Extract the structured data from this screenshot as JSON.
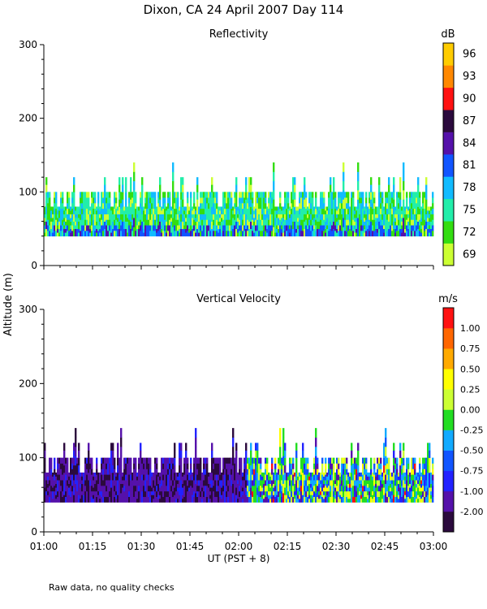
{
  "figure": {
    "title": "Dixon, CA 24 April 2007  Day 114",
    "shared_ylabel": "Altitude (m)",
    "xlabel": "UT  (PST + 8)",
    "footnote": "Raw data, no quality checks"
  },
  "chart_data": [
    {
      "type": "heatmap",
      "title": "Reflectivity",
      "xlim": [
        "01:00",
        "03:00"
      ],
      "ylim": [
        0,
        300
      ],
      "x_ticks": [
        "01:00",
        "01:15",
        "01:30",
        "01:45",
        "02:00",
        "02:15",
        "02:30",
        "02:45",
        "03:00"
      ],
      "y_ticks": [
        0,
        100,
        200,
        300
      ],
      "echo_base_m": 40,
      "echo_top_typical_m": 100,
      "echo_top_max_m": 140,
      "colorbar": {
        "unit": "dB",
        "tick_labels": [
          "69",
          "72",
          "75",
          "78",
          "81",
          "84",
          "87",
          "90",
          "93",
          "96"
        ],
        "colors": [
          "#ccff33",
          "#33dd11",
          "#22eeaa",
          "#11bbff",
          "#1155ff",
          "#5511aa",
          "#2b0a3d",
          "#ff1111",
          "#ff8800",
          "#ffcc00"
        ]
      }
    },
    {
      "type": "heatmap",
      "title": "Vertical Velocity",
      "xlim": [
        "01:00",
        "03:00"
      ],
      "ylim": [
        0,
        300
      ],
      "x_ticks": [
        "01:00",
        "01:15",
        "01:30",
        "01:45",
        "02:00",
        "02:15",
        "02:30",
        "02:45",
        "03:00"
      ],
      "y_ticks": [
        0,
        100,
        200,
        300
      ],
      "echo_base_m": 40,
      "echo_top_typical_m": 100,
      "echo_top_max_m": 140,
      "colorbar": {
        "unit": "m/s",
        "tick_labels": [
          "-2.00",
          "-1.00",
          "-0.75",
          "-0.50",
          "-0.25",
          "0.00",
          "0.25",
          "0.50",
          "0.75",
          "1.00"
        ],
        "colors": [
          "#2b0a3d",
          "#5511aa",
          "#2222ff",
          "#1155ff",
          "#11aaff",
          "#22dd22",
          "#ccff33",
          "#ffff00",
          "#ffaa00",
          "#ff6600",
          "#ff1111"
        ]
      }
    }
  ]
}
